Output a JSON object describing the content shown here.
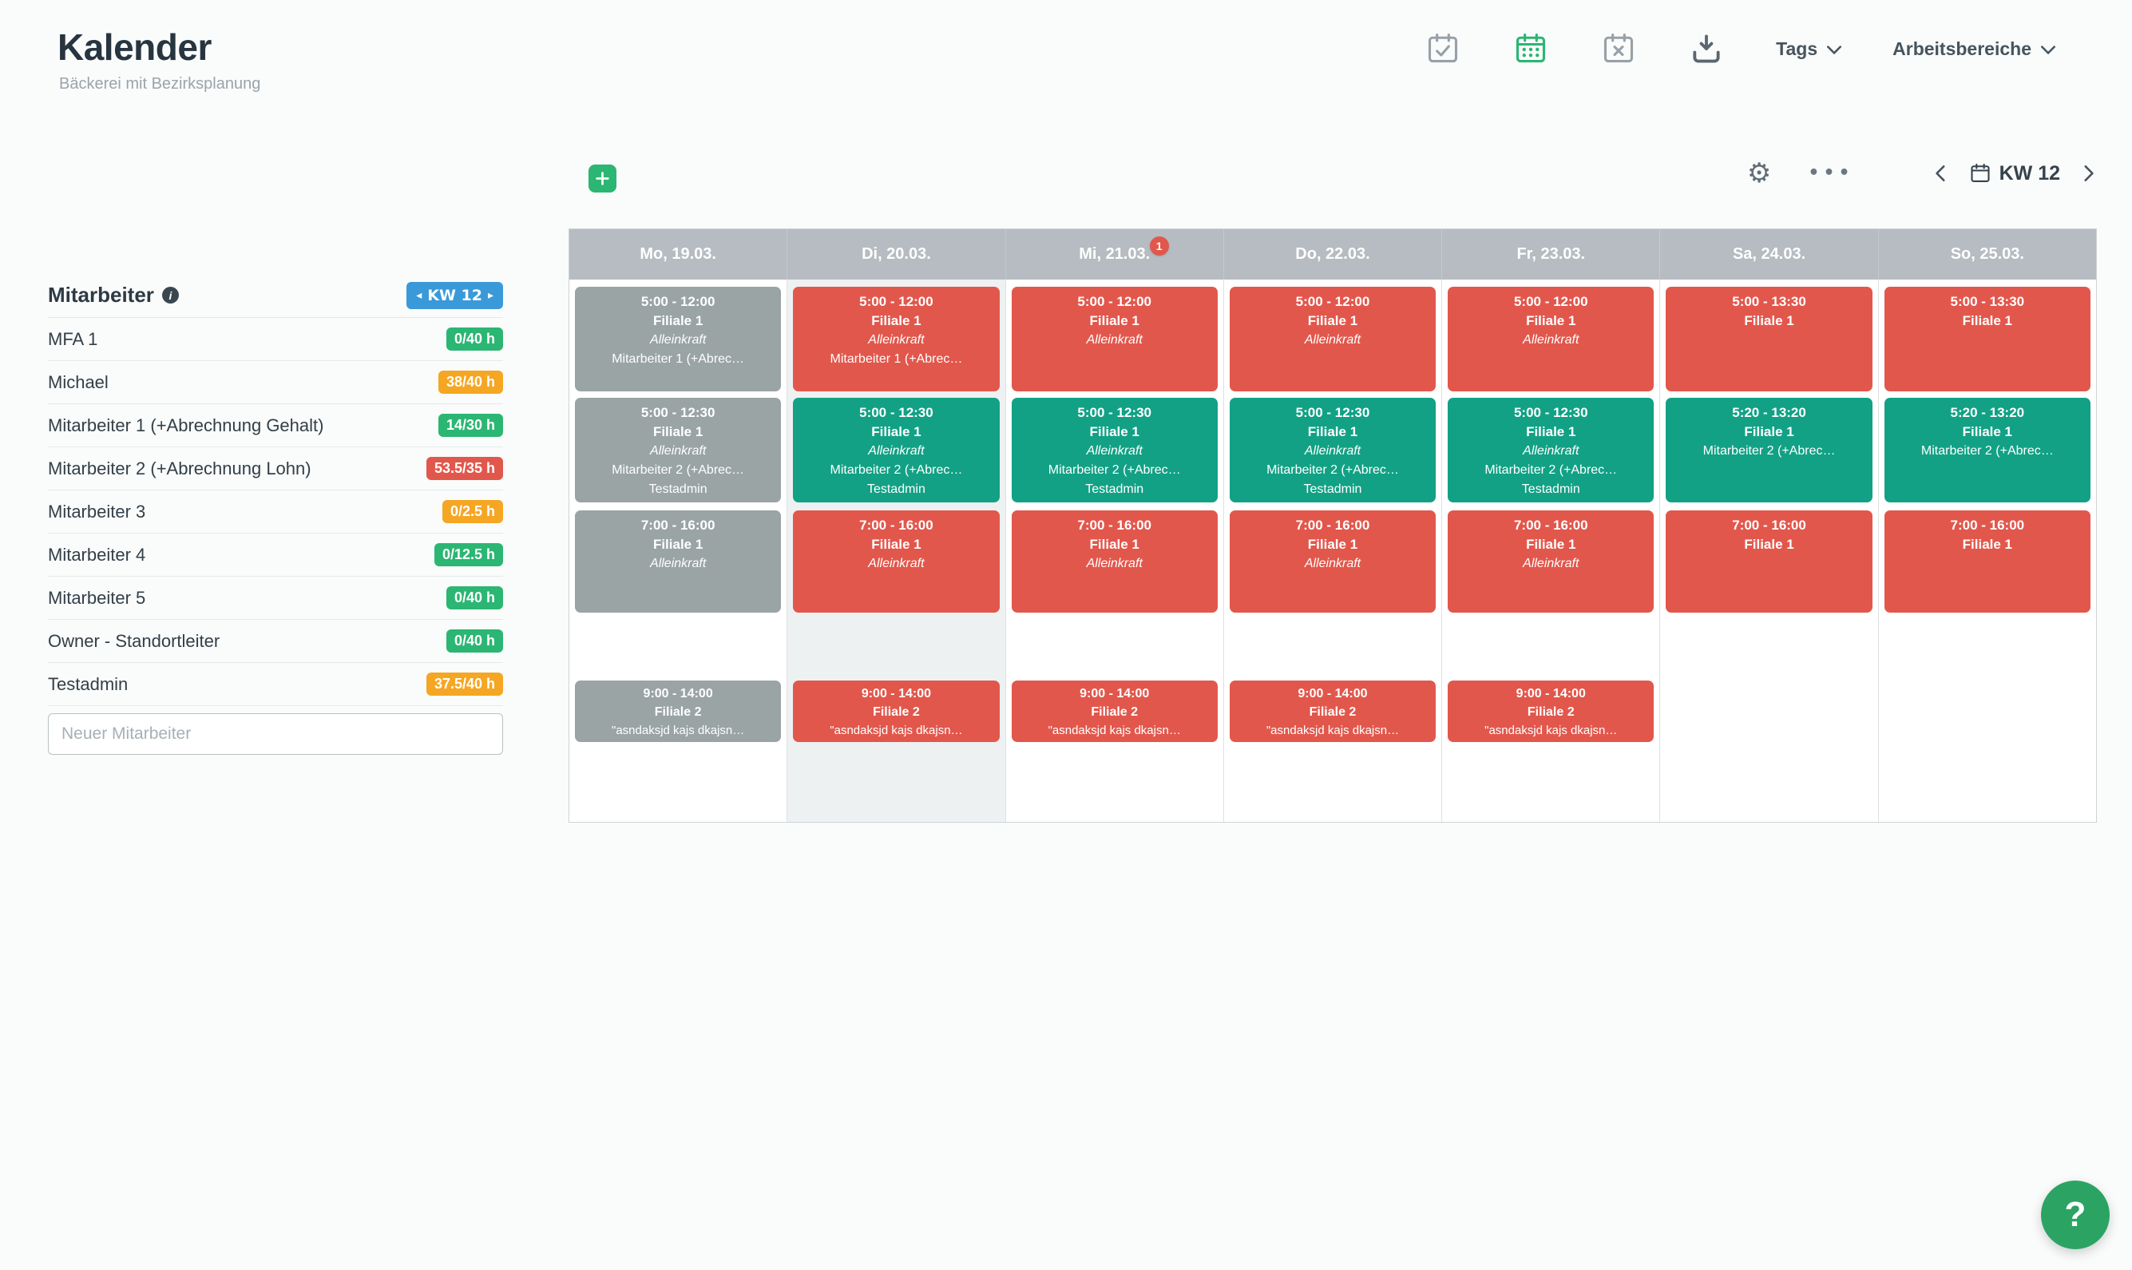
{
  "header": {
    "title": "Kalender",
    "subtitle": "Bäckerei mit Bezirksplanung",
    "tags_label": "Tags",
    "workspaces_label": "Arbeitsbereiche"
  },
  "toolbar": {
    "week_label": "KW 12"
  },
  "icons": {
    "gear": "⚙",
    "ellipsis": "•••",
    "info": "i",
    "help": "?",
    "sidebar_week_prev": "◂",
    "sidebar_week_next": "▸"
  },
  "sidebar": {
    "title": "Mitarbeiter",
    "week_badge": "KW 12",
    "new_employee_placeholder": "Neuer Mitarbeiter",
    "employees": [
      {
        "name": "MFA 1",
        "hours": "0/40 h",
        "status": "green"
      },
      {
        "name": "Michael",
        "hours": "38/40 h",
        "status": "orange"
      },
      {
        "name": "Mitarbeiter 1 (+Abrechnung Gehalt)",
        "hours": "14/30 h",
        "status": "green"
      },
      {
        "name": "Mitarbeiter 2 (+Abrechnung Lohn)",
        "hours": "53.5/35 h",
        "status": "red"
      },
      {
        "name": "Mitarbeiter 3",
        "hours": "0/2.5 h",
        "status": "orange"
      },
      {
        "name": "Mitarbeiter 4",
        "hours": "0/12.5 h",
        "status": "green"
      },
      {
        "name": "Mitarbeiter 5",
        "hours": "0/40 h",
        "status": "green"
      },
      {
        "name": "Owner - Standortleiter",
        "hours": "0/40 h",
        "status": "green"
      },
      {
        "name": "Testadmin",
        "hours": "37.5/40 h",
        "status": "orange"
      }
    ]
  },
  "calendar": {
    "days": [
      {
        "label": "Mo, 19.03.",
        "badge": "",
        "highlight": false
      },
      {
        "label": "Di, 20.03.",
        "badge": "",
        "highlight": true
      },
      {
        "label": "Mi, 21.03.",
        "badge": "1",
        "highlight": false
      },
      {
        "label": "Do, 22.03.",
        "badge": "",
        "highlight": false
      },
      {
        "label": "Fr, 23.03.",
        "badge": "",
        "highlight": false
      },
      {
        "label": "Sa, 24.03.",
        "badge": "",
        "highlight": false
      },
      {
        "label": "So, 25.03.",
        "badge": "",
        "highlight": false
      }
    ],
    "rows": [
      {
        "cells": [
          {
            "color": "gray",
            "lines": [
              [
                "5:00 - 12:00",
                "b"
              ],
              [
                "Filiale 1",
                "b"
              ],
              [
                "Alleinkraft",
                "i"
              ],
              [
                "Mitarbeiter 1 (+Abrec…",
                "n"
              ]
            ]
          },
          {
            "color": "red",
            "lines": [
              [
                "5:00 - 12:00",
                "b"
              ],
              [
                "Filiale 1",
                "b"
              ],
              [
                "Alleinkraft",
                "i"
              ],
              [
                "Mitarbeiter 1 (+Abrec…",
                "n"
              ]
            ]
          },
          {
            "color": "red",
            "lines": [
              [
                "5:00 - 12:00",
                "b"
              ],
              [
                "Filiale 1",
                "b"
              ],
              [
                "Alleinkraft",
                "i"
              ]
            ]
          },
          {
            "color": "red",
            "lines": [
              [
                "5:00 - 12:00",
                "b"
              ],
              [
                "Filiale 1",
                "b"
              ],
              [
                "Alleinkraft",
                "i"
              ]
            ]
          },
          {
            "color": "red",
            "lines": [
              [
                "5:00 - 12:00",
                "b"
              ],
              [
                "Filiale 1",
                "b"
              ],
              [
                "Alleinkraft",
                "i"
              ]
            ]
          },
          {
            "color": "red",
            "lines": [
              [
                "5:00 - 13:30",
                "b"
              ],
              [
                "Filiale 1",
                "b"
              ]
            ]
          },
          {
            "color": "red",
            "lines": [
              [
                "5:00 - 13:30",
                "b"
              ],
              [
                "Filiale 1",
                "b"
              ]
            ]
          }
        ]
      },
      {
        "cells": [
          {
            "color": "gray",
            "lines": [
              [
                "5:00 - 12:30",
                "b"
              ],
              [
                "Filiale 1",
                "b"
              ],
              [
                "Alleinkraft",
                "i"
              ],
              [
                "Mitarbeiter 2 (+Abrec…",
                "n"
              ],
              [
                "Testadmin",
                "n"
              ]
            ]
          },
          {
            "color": "green",
            "lines": [
              [
                "5:00 - 12:30",
                "b"
              ],
              [
                "Filiale 1",
                "b"
              ],
              [
                "Alleinkraft",
                "i"
              ],
              [
                "Mitarbeiter 2 (+Abrec…",
                "n"
              ],
              [
                "Testadmin",
                "n"
              ]
            ]
          },
          {
            "color": "green",
            "lines": [
              [
                "5:00 - 12:30",
                "b"
              ],
              [
                "Filiale 1",
                "b"
              ],
              [
                "Alleinkraft",
                "i"
              ],
              [
                "Mitarbeiter 2 (+Abrec…",
                "n"
              ],
              [
                "Testadmin",
                "n"
              ]
            ]
          },
          {
            "color": "green",
            "lines": [
              [
                "5:00 - 12:30",
                "b"
              ],
              [
                "Filiale 1",
                "b"
              ],
              [
                "Alleinkraft",
                "i"
              ],
              [
                "Mitarbeiter 2 (+Abrec…",
                "n"
              ],
              [
                "Testadmin",
                "n"
              ]
            ]
          },
          {
            "color": "green",
            "lines": [
              [
                "5:00 - 12:30",
                "b"
              ],
              [
                "Filiale 1",
                "b"
              ],
              [
                "Alleinkraft",
                "i"
              ],
              [
                "Mitarbeiter 2 (+Abrec…",
                "n"
              ],
              [
                "Testadmin",
                "n"
              ]
            ]
          },
          {
            "color": "green",
            "lines": [
              [
                "5:20 - 13:20",
                "b"
              ],
              [
                "Filiale 1",
                "b"
              ],
              [
                "Mitarbeiter 2 (+Abrec…",
                "n"
              ]
            ]
          },
          {
            "color": "green",
            "lines": [
              [
                "5:20 - 13:20",
                "b"
              ],
              [
                "Filiale 1",
                "b"
              ],
              [
                "Mitarbeiter 2 (+Abrec…",
                "n"
              ]
            ]
          }
        ]
      },
      {
        "cells": [
          {
            "color": "gray",
            "lines": [
              [
                "7:00 - 16:00",
                "b"
              ],
              [
                "Filiale 1",
                "b"
              ],
              [
                "Alleinkraft",
                "i"
              ]
            ]
          },
          {
            "color": "red",
            "lines": [
              [
                "7:00 - 16:00",
                "b"
              ],
              [
                "Filiale 1",
                "b"
              ],
              [
                "Alleinkraft",
                "i"
              ]
            ]
          },
          {
            "color": "red",
            "lines": [
              [
                "7:00 - 16:00",
                "b"
              ],
              [
                "Filiale 1",
                "b"
              ],
              [
                "Alleinkraft",
                "i"
              ]
            ]
          },
          {
            "color": "red",
            "lines": [
              [
                "7:00 - 16:00",
                "b"
              ],
              [
                "Filiale 1",
                "b"
              ],
              [
                "Alleinkraft",
                "i"
              ]
            ]
          },
          {
            "color": "red",
            "lines": [
              [
                "7:00 - 16:00",
                "b"
              ],
              [
                "Filiale 1",
                "b"
              ],
              [
                "Alleinkraft",
                "i"
              ]
            ]
          },
          {
            "color": "red",
            "lines": [
              [
                "7:00 - 16:00",
                "b"
              ],
              [
                "Filiale 1",
                "b"
              ]
            ]
          },
          {
            "color": "red",
            "lines": [
              [
                "7:00 - 16:00",
                "b"
              ],
              [
                "Filiale 1",
                "b"
              ]
            ]
          }
        ]
      },
      {
        "cells": [
          {
            "color": "gray",
            "lines": [
              [
                "9:00 - 14:00",
                "b"
              ],
              [
                "Filiale 2",
                "b"
              ],
              [
                "\"asndaksjd kajs dkajsn…",
                "n"
              ]
            ]
          },
          {
            "color": "red",
            "lines": [
              [
                "9:00 - 14:00",
                "b"
              ],
              [
                "Filiale 2",
                "b"
              ],
              [
                "\"asndaksjd kajs dkajsn…",
                "n"
              ]
            ]
          },
          {
            "color": "red",
            "lines": [
              [
                "9:00 - 14:00",
                "b"
              ],
              [
                "Filiale 2",
                "b"
              ],
              [
                "\"asndaksjd kajs dkajsn…",
                "n"
              ]
            ]
          },
          {
            "color": "red",
            "lines": [
              [
                "9:00 - 14:00",
                "b"
              ],
              [
                "Filiale 2",
                "b"
              ],
              [
                "\"asndaksjd kajs dkajsn…",
                "n"
              ]
            ]
          },
          {
            "color": "red",
            "lines": [
              [
                "9:00 - 14:00",
                "b"
              ],
              [
                "Filiale 2",
                "b"
              ],
              [
                "\"asndaksjd kajs dkajsn…",
                "n"
              ]
            ]
          },
          null,
          null
        ]
      }
    ]
  },
  "colors": {
    "card_gray": "#9aa4a5",
    "card_red": "#e2574c",
    "card_green": "#12a185",
    "badge_green": "#2bb673",
    "badge_orange": "#f5a623",
    "badge_red": "#e2574c",
    "chip_blue": "#3a99d9",
    "accent_green": "#2bb673",
    "day_header_bg": "#b6bcc1",
    "col_highlight": "#eef1f1",
    "help_green": "#2ba463"
  }
}
